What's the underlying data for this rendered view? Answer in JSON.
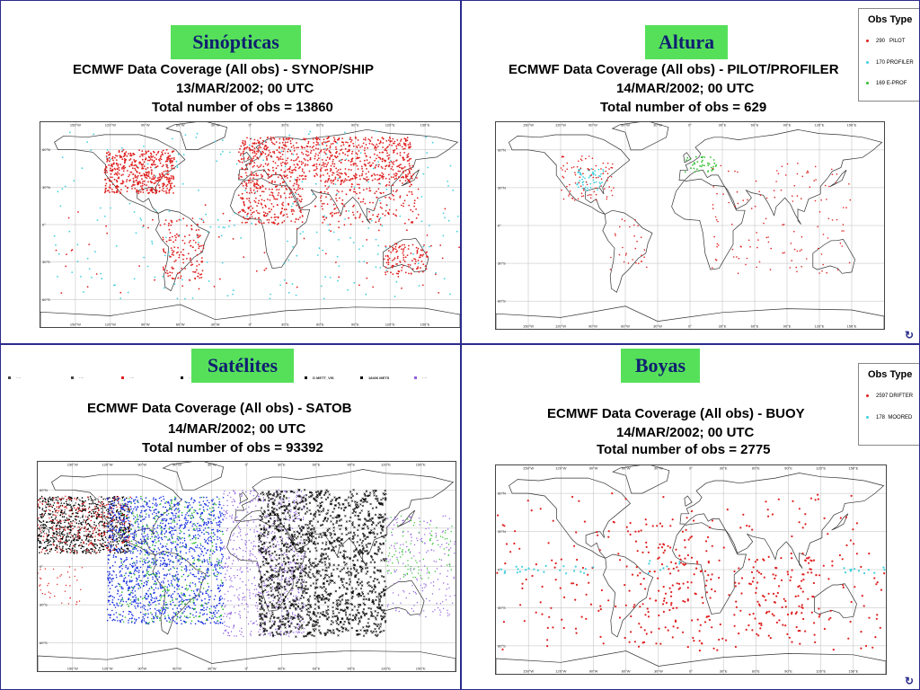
{
  "panels": {
    "synop": {
      "label": "Sinópticas",
      "title_line1": "ECMWF Data Coverage (All obs)    - SYNOP/SHIP",
      "title_line2": "13/MAR/2002; 00 UTC",
      "title_line3": "Total number of obs = 13860"
    },
    "pilot": {
      "label": "Altura",
      "title_line1": "ECMWF Data Coverage (All obs)    - PILOT/PROFILER",
      "title_line2": "14/MAR/2002; 00 UTC",
      "title_line3": "Total number of obs = 629",
      "legend_title": "Obs Type",
      "legend": [
        {
          "count": "290",
          "name": "PILOT",
          "color": "#e02020"
        },
        {
          "count": "170",
          "name": "PROFILER",
          "color": "#40d0e0"
        },
        {
          "count": "169",
          "name": "E-PROF",
          "color": "#30c030"
        }
      ]
    },
    "satob": {
      "label": "Satélites",
      "title_line1": "ECMWF Data Coverage (All obs)    - SATOB",
      "title_line2": "14/MAR/2002; 00 UTC",
      "title_line3": "Total number of obs = 93392",
      "legend_partial": [
        "18406 METS",
        "D METT_VIS"
      ]
    },
    "buoy": {
      "label": "Boyas",
      "title_line1": "ECMWF Data Coverage (All obs)    - BUOY",
      "title_line2": "14/MAR/2002; 00 UTC",
      "title_line3": "Total number of obs = 2775",
      "legend_title": "Obs Type",
      "legend": [
        {
          "count": "2597",
          "name": "DRIFTER",
          "color": "#e02020"
        },
        {
          "count": "178",
          "name": "MOORED",
          "color": "#40d0e0"
        }
      ]
    }
  },
  "axis": {
    "lon_labels": [
      "150°W",
      "120°W",
      "90°W",
      "60°W",
      "30°W",
      "0°",
      "30°E",
      "60°E",
      "90°E",
      "120°E",
      "150°E"
    ],
    "lat_labels": [
      "60°N",
      "30°N",
      "0°",
      "30°S",
      "60°S"
    ]
  },
  "colors": {
    "label_bg": "#56e05a",
    "label_text": "#102070",
    "red": "#e02020",
    "cyan": "#40d0e0",
    "green": "#30c030",
    "blue": "#1830e0",
    "black": "#000000",
    "purple": "#9060e0"
  }
}
